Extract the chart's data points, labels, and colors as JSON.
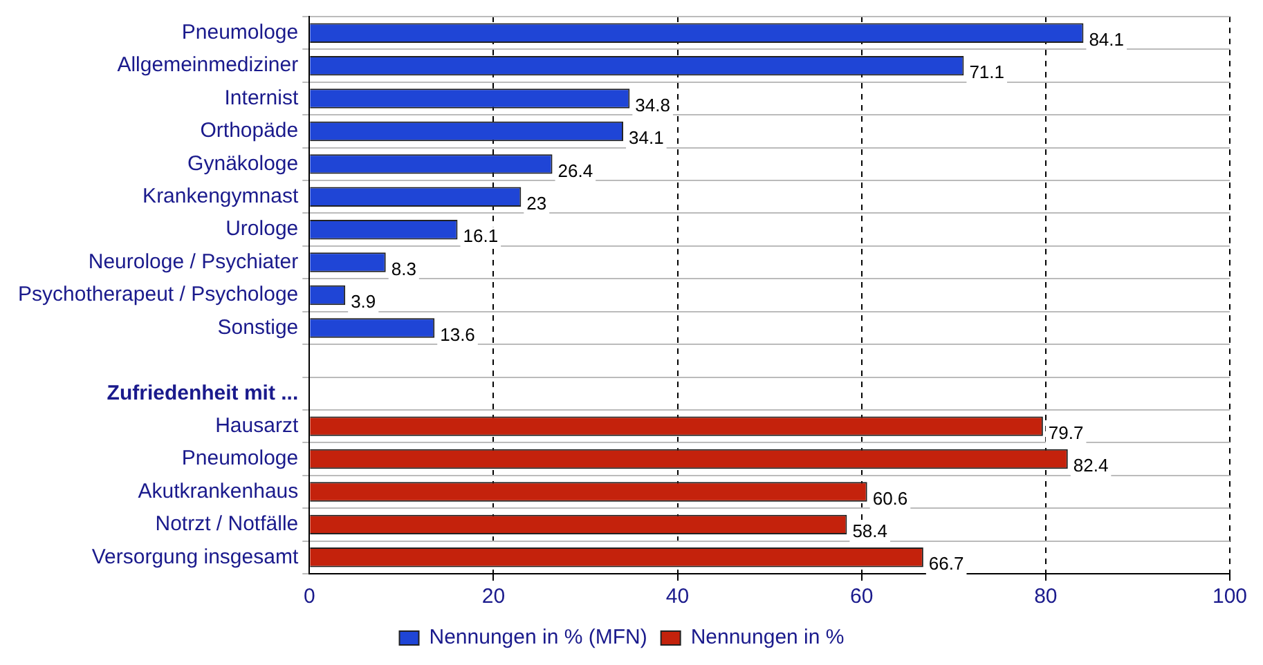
{
  "chart_data": {
    "type": "bar",
    "orientation": "horizontal",
    "categories": [
      "Pneumologe",
      "Allgemeinmediziner",
      "Internist",
      "Orthopäde",
      "Gynäkologe",
      "Krankengymnast",
      "Urologe",
      "Neurologe / Psychiater",
      "Psychotherapeut / Psychologe",
      "Sonstige",
      null,
      "Zufriedenheit mit ...",
      "Hausarzt",
      "Pneumologe",
      "Akutkrankenhaus",
      "Notrzt / Notfälle",
      "Versorgung insgesamt"
    ],
    "series": [
      {
        "name": "Nennungen in % (MFN)",
        "color": "#1f45d6",
        "values": [
          84.1,
          71.1,
          34.8,
          34.1,
          26.4,
          23,
          16.1,
          8.3,
          3.9,
          13.6,
          null,
          null,
          null,
          null,
          null,
          null,
          null
        ]
      },
      {
        "name": "Nennungen in %",
        "color": "#c4220c",
        "values": [
          null,
          null,
          null,
          null,
          null,
          null,
          null,
          null,
          null,
          null,
          null,
          null,
          79.7,
          82.4,
          60.6,
          58.4,
          66.7
        ]
      }
    ],
    "xlim": [
      0,
      100
    ],
    "xticks": [
      0,
      20,
      40,
      60,
      80,
      100
    ],
    "grid": true,
    "legend": "bottom",
    "data_labels": true
  }
}
